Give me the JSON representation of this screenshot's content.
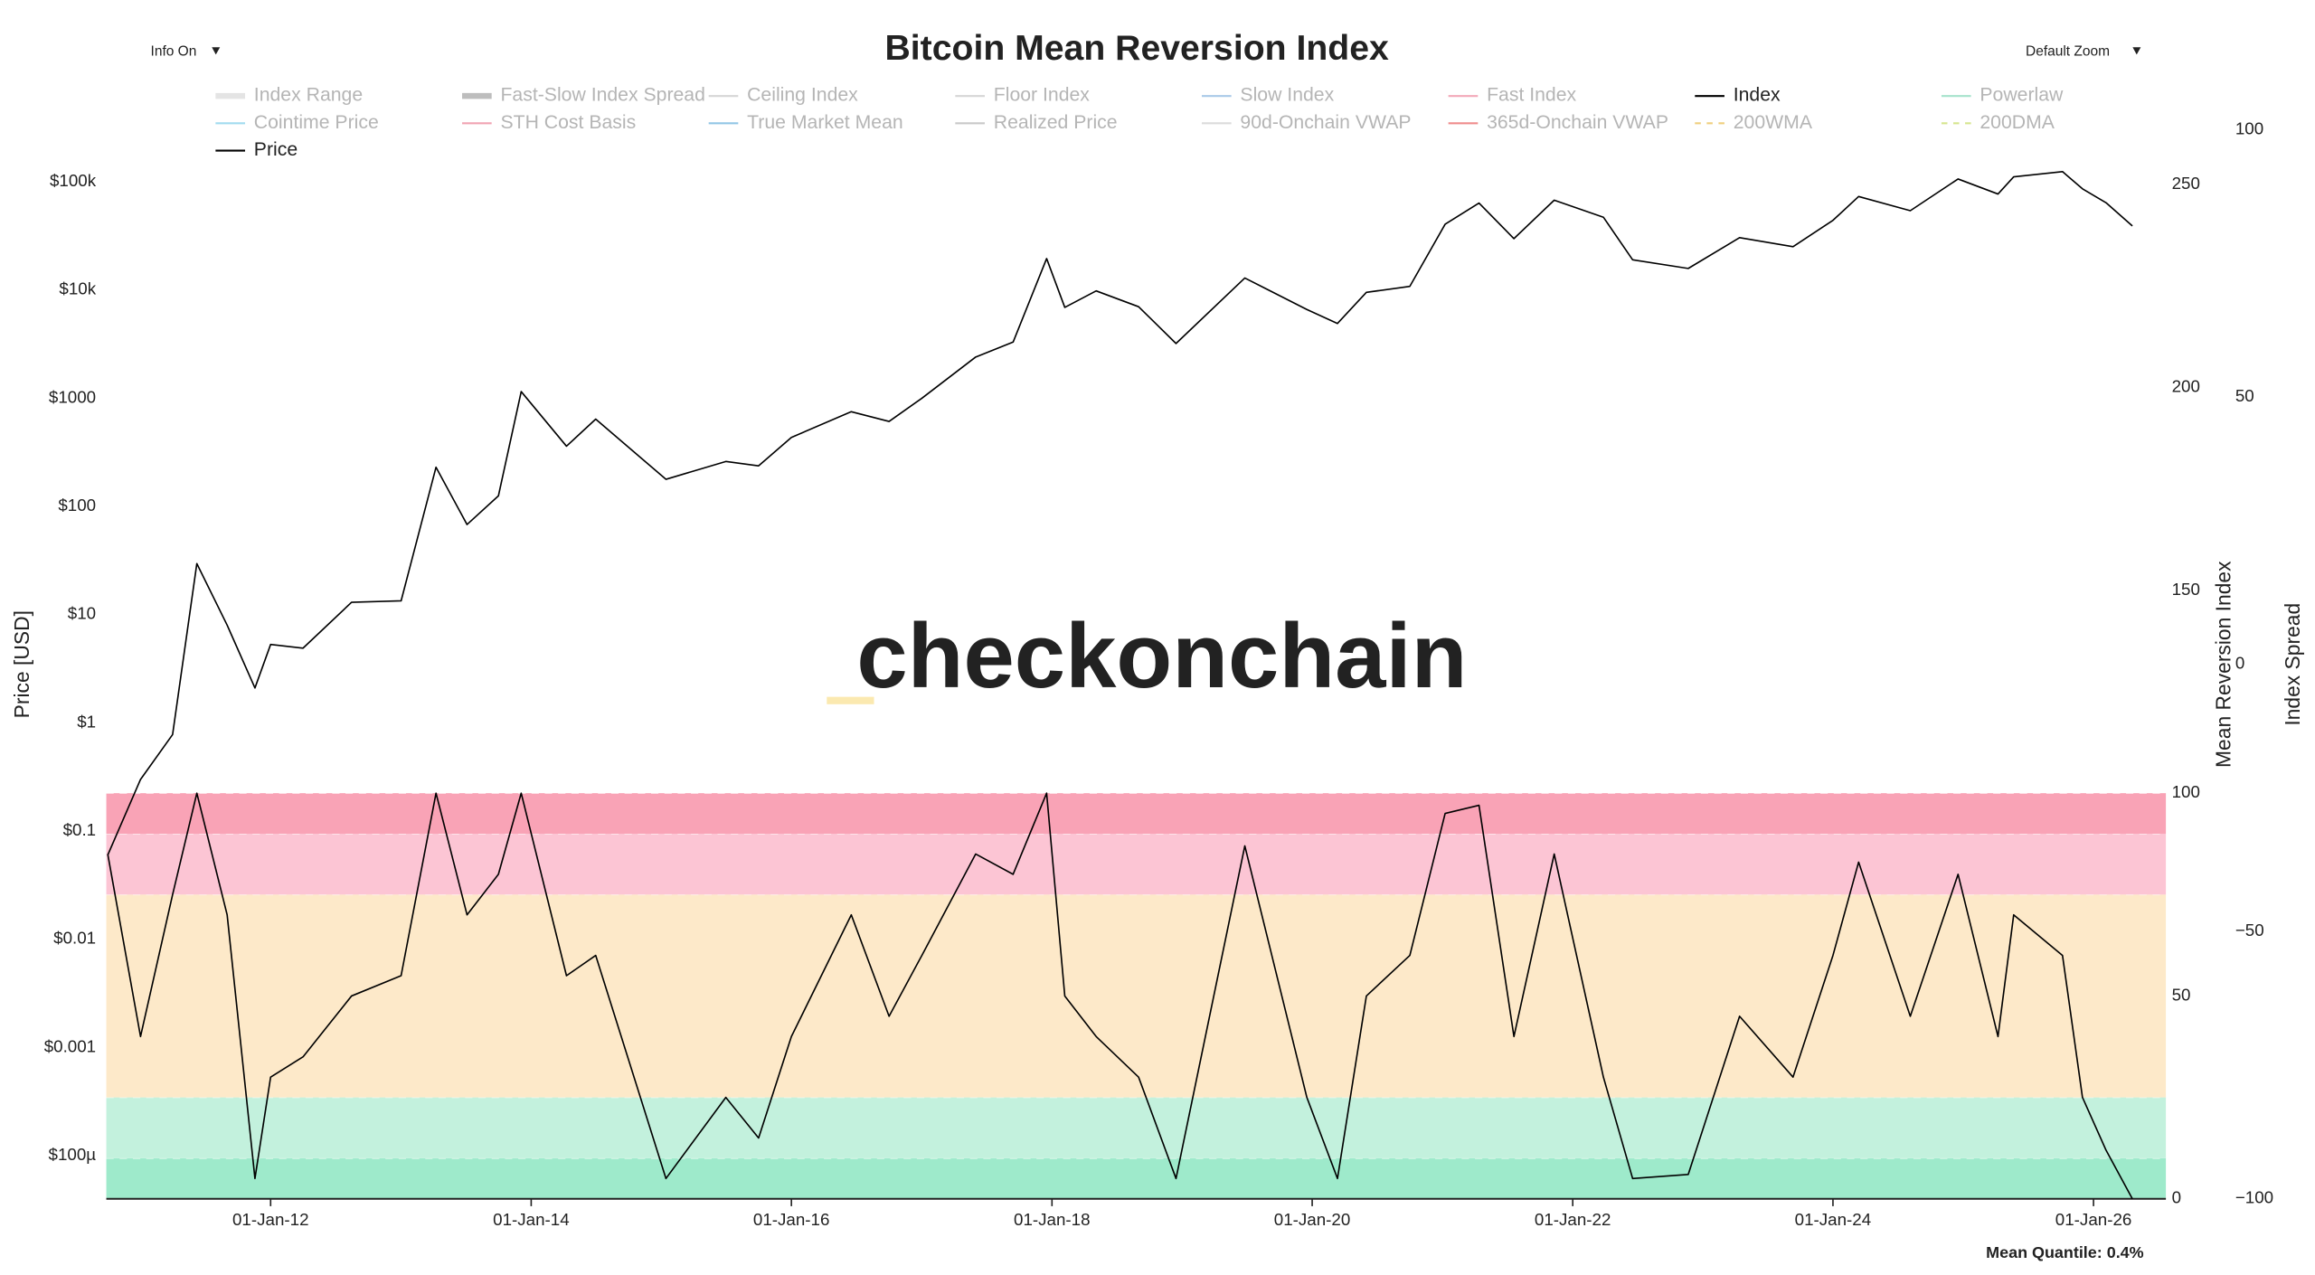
{
  "controls": {
    "info": "Info On",
    "zoom": "Default Zoom"
  },
  "footer": "Mean Quantile: 0.4%",
  "watermark": "checkonchain",
  "chart_data": {
    "type": "line",
    "title": "Bitcoin Mean Reversion Index",
    "ylabel": "Price [USD]",
    "y2label": "Mean Reversion Index",
    "y3label": "Index Spread",
    "yscale": "log",
    "xlim": [
      "2010-09-27",
      "2026-07-23"
    ],
    "xticks": [
      {
        "value": "2012-01-01",
        "label": "01-Jan-12"
      },
      {
        "value": "2014-01-01",
        "label": "01-Jan-14"
      },
      {
        "value": "2016-01-01",
        "label": "01-Jan-16"
      },
      {
        "value": "2018-01-01",
        "label": "01-Jan-18"
      },
      {
        "value": "2020-01-01",
        "label": "01-Jan-20"
      },
      {
        "value": "2022-01-01",
        "label": "01-Jan-22"
      },
      {
        "value": "2024-01-01",
        "label": "01-Jan-24"
      },
      {
        "value": "2026-01-01",
        "label": "01-Jan-26"
      }
    ],
    "ylim": [
      4e-05,
      301000
    ],
    "yticks": [
      {
        "value": 0.0001,
        "label": "$100µ"
      },
      {
        "value": 0.001,
        "label": "$0.001"
      },
      {
        "value": 0.01,
        "label": "$0.01"
      },
      {
        "value": 0.1,
        "label": "$0.1"
      },
      {
        "value": 1,
        "label": "$1"
      },
      {
        "value": 10,
        "label": "$10"
      },
      {
        "value": 100,
        "label": "$100"
      },
      {
        "value": 1000,
        "label": "$1000"
      },
      {
        "value": 10000,
        "label": "$10k"
      },
      {
        "value": 100000,
        "label": "$100k"
      }
    ],
    "y2lim": [
      0,
      263.5
    ],
    "y2ticks": [
      0,
      50,
      100,
      150,
      200,
      250
    ],
    "y3lim": [
      -100,
      100
    ],
    "y3ticks": [
      {
        "value": -100,
        "label": "−100"
      },
      {
        "value": -50,
        "label": "−50"
      },
      0,
      50,
      100
    ],
    "zones": [
      {
        "from": 0,
        "to": 10,
        "color": "#9eeacb"
      },
      {
        "from": 10,
        "to": 25,
        "color": "#c3f1dd"
      },
      {
        "from": 25,
        "to": 75,
        "color": "#fde9c9"
      },
      {
        "from": 75,
        "to": 90,
        "color": "#fcc5d4"
      },
      {
        "from": 90,
        "to": 100,
        "color": "#f9a3b6"
      }
    ],
    "x": [
      "2010-10-01",
      "2011-01-01",
      "2011-04-01",
      "2011-06-08",
      "2011-09-01",
      "2011-11-18",
      "2012-01-01",
      "2012-04-01",
      "2012-08-15",
      "2013-01-01",
      "2013-04-09",
      "2013-07-05",
      "2013-10-01",
      "2013-12-04",
      "2014-04-10",
      "2014-07-01",
      "2015-01-14",
      "2015-07-01",
      "2015-10-01",
      "2016-01-01",
      "2016-06-17",
      "2016-10-01",
      "2017-01-01",
      "2017-06-01",
      "2017-09-14",
      "2017-12-17",
      "2018-02-06",
      "2018-05-05",
      "2018-09-01",
      "2018-12-15",
      "2019-06-26",
      "2019-12-17",
      "2020-03-12",
      "2020-06-01",
      "2020-10-01",
      "2021-01-08",
      "2021-04-13",
      "2021-07-20",
      "2021-11-10",
      "2022-03-28",
      "2022-06-18",
      "2022-11-21",
      "2023-04-14",
      "2023-09-11",
      "2024-01-01",
      "2024-03-13",
      "2024-08-05",
      "2024-12-17",
      "2025-04-08",
      "2025-05-22",
      "2025-10-06",
      "2025-12-01",
      "2026-02-05",
      "2026-04-20"
    ],
    "series": [
      {
        "name": "Index Range",
        "color": "#e4e4e4",
        "style": "band"
      },
      {
        "name": "Fast-Slow Index Spread",
        "color": "#bdbdbd",
        "style": "band"
      },
      {
        "name": "Ceiling Index",
        "color": "#d6d6d6"
      },
      {
        "name": "Floor Index",
        "color": "#d6d6d6"
      },
      {
        "name": "Slow Index",
        "color": "#a9c9e8"
      },
      {
        "name": "Fast Index",
        "color": "#f2a9b9"
      },
      {
        "name": "Index",
        "color": "#000000",
        "axis": "y2",
        "visible": true,
        "values": [
          85,
          40,
          75,
          100,
          70,
          5,
          30,
          35,
          50,
          55,
          100,
          70,
          80,
          100,
          55,
          60,
          5,
          25,
          15,
          40,
          70,
          45,
          60,
          85,
          80,
          100,
          50,
          40,
          30,
          5,
          87,
          25,
          5,
          50,
          60,
          95,
          97,
          40,
          85,
          30,
          5,
          6,
          45,
          30,
          60,
          83,
          45,
          80,
          40,
          70,
          60,
          25,
          12,
          0
        ]
      },
      {
        "name": "Powerlaw",
        "color": "#a6e3cc"
      },
      {
        "name": "Cointime Price",
        "color": "#a2dcef"
      },
      {
        "name": "STH Cost Basis",
        "color": "#f1a4b3"
      },
      {
        "name": "True Market Mean",
        "color": "#93c6e6"
      },
      {
        "name": "Realized Price",
        "color": "#c9c9c9"
      },
      {
        "name": "90d-Onchain VWAP",
        "color": "#dcdcdc"
      },
      {
        "name": "365d-Onchain VWAP",
        "color": "#ef8d8d"
      },
      {
        "name": "200WMA",
        "color": "#efcf7e",
        "style": "dash"
      },
      {
        "name": "200DMA",
        "color": "#d6e58f",
        "style": "dash"
      },
      {
        "name": "Price",
        "color": "#000000",
        "visible": true,
        "values": [
          0.06,
          0.3,
          0.78,
          29.6,
          8,
          2.1,
          5.3,
          4.9,
          13,
          13.4,
          230,
          68,
          125,
          1150,
          360,
          640,
          178,
          260,
          237,
          434,
          750,
          610,
          998,
          2400,
          3300,
          19500,
          6900,
          9800,
          7000,
          3200,
          12900,
          6600,
          4900,
          9500,
          10800,
          40500,
          63500,
          29800,
          67500,
          47000,
          19000,
          15800,
          30400,
          25100,
          44000,
          73000,
          54000,
          106000,
          77000,
          111000,
          124000,
          86000,
          64000,
          39000
        ]
      }
    ]
  }
}
